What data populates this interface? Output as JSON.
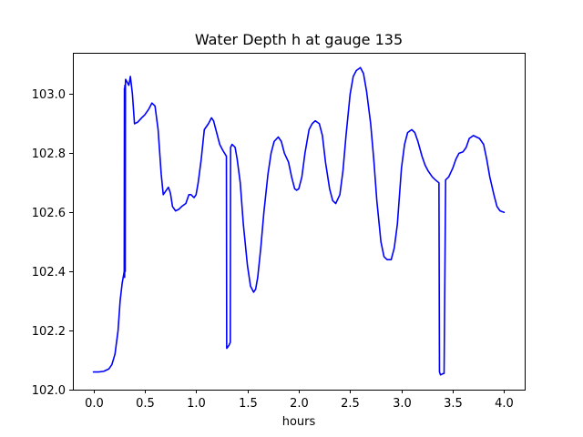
{
  "chart_data": {
    "type": "line",
    "title": "Water Depth h at gauge 135",
    "xlabel": "hours",
    "ylabel": "",
    "xlim": [
      -0.2,
      4.2
    ],
    "ylim": [
      102.0,
      103.14
    ],
    "xticks": [
      0.0,
      0.5,
      1.0,
      1.5,
      2.0,
      2.5,
      3.0,
      3.5,
      4.0
    ],
    "xtick_labels": [
      "0.0",
      "0.5",
      "1.0",
      "1.5",
      "2.0",
      "2.5",
      "3.0",
      "3.5",
      "4.0"
    ],
    "yticks": [
      102.0,
      102.2,
      102.4,
      102.6,
      102.8,
      103.0
    ],
    "ytick_labels": [
      "102.0",
      "102.2",
      "102.4",
      "102.6",
      "102.8",
      "103.0"
    ],
    "grid": false,
    "series": [
      {
        "color": "#0000ff",
        "x": [
          0.0,
          0.05,
          0.1,
          0.15,
          0.18,
          0.21,
          0.24,
          0.26,
          0.28,
          0.3,
          0.302,
          0.304,
          0.306,
          0.31,
          0.312,
          0.314,
          0.33,
          0.345,
          0.36,
          0.38,
          0.4,
          0.43,
          0.47,
          0.5,
          0.54,
          0.57,
          0.6,
          0.63,
          0.66,
          0.68,
          0.7,
          0.73,
          0.75,
          0.77,
          0.8,
          0.83,
          0.86,
          0.9,
          0.93,
          0.95,
          0.98,
          1.0,
          1.02,
          1.05,
          1.08,
          1.12,
          1.15,
          1.17,
          1.2,
          1.23,
          1.26,
          1.295,
          1.298,
          1.3,
          1.32,
          1.333,
          1.336,
          1.35,
          1.38,
          1.4,
          1.43,
          1.46,
          1.5,
          1.53,
          1.56,
          1.58,
          1.6,
          1.63,
          1.66,
          1.7,
          1.73,
          1.76,
          1.8,
          1.83,
          1.86,
          1.9,
          1.93,
          1.96,
          1.98,
          2.0,
          2.03,
          2.06,
          2.1,
          2.13,
          2.16,
          2.2,
          2.23,
          2.26,
          2.3,
          2.33,
          2.36,
          2.4,
          2.43,
          2.46,
          2.5,
          2.53,
          2.56,
          2.6,
          2.63,
          2.66,
          2.7,
          2.73,
          2.76,
          2.8,
          2.83,
          2.86,
          2.9,
          2.93,
          2.96,
          3.0,
          3.03,
          3.06,
          3.1,
          3.13,
          3.16,
          3.2,
          3.23,
          3.26,
          3.3,
          3.33,
          3.365,
          3.37,
          3.38,
          3.41,
          3.415,
          3.43,
          3.46,
          3.5,
          3.53,
          3.56,
          3.6,
          3.63,
          3.66,
          3.7,
          3.73,
          3.76,
          3.8,
          3.83,
          3.86,
          3.9,
          3.93,
          3.96,
          4.0
        ],
        "y": [
          102.06,
          102.06,
          102.062,
          102.07,
          102.085,
          102.12,
          102.2,
          102.3,
          102.36,
          102.4,
          103.02,
          102.38,
          103.03,
          102.4,
          103.04,
          103.05,
          103.04,
          103.03,
          103.06,
          103.0,
          102.9,
          102.905,
          102.92,
          102.93,
          102.95,
          102.97,
          102.96,
          102.88,
          102.73,
          102.66,
          102.67,
          102.685,
          102.665,
          102.62,
          102.605,
          102.61,
          102.62,
          102.63,
          102.66,
          102.66,
          102.65,
          102.66,
          102.7,
          102.78,
          102.88,
          102.9,
          102.92,
          102.91,
          102.87,
          102.83,
          102.81,
          102.79,
          102.14,
          102.14,
          102.15,
          102.16,
          102.82,
          102.83,
          102.82,
          102.78,
          102.7,
          102.56,
          102.42,
          102.35,
          102.33,
          102.34,
          102.38,
          102.48,
          102.6,
          102.73,
          102.8,
          102.84,
          102.855,
          102.84,
          102.8,
          102.77,
          102.72,
          102.68,
          102.675,
          102.68,
          102.72,
          102.8,
          102.88,
          102.9,
          102.91,
          102.9,
          102.86,
          102.77,
          102.68,
          102.64,
          102.63,
          102.66,
          102.74,
          102.86,
          103.0,
          103.06,
          103.08,
          103.09,
          103.07,
          103.01,
          102.9,
          102.78,
          102.64,
          102.5,
          102.45,
          102.44,
          102.44,
          102.48,
          102.56,
          102.75,
          102.83,
          102.87,
          102.88,
          102.87,
          102.84,
          102.79,
          102.76,
          102.74,
          102.72,
          102.71,
          102.7,
          102.06,
          102.05,
          102.055,
          102.055,
          102.71,
          102.72,
          102.75,
          102.78,
          102.8,
          102.805,
          102.82,
          102.85,
          102.86,
          102.855,
          102.85,
          102.83,
          102.78,
          102.72,
          102.66,
          102.62,
          102.605,
          102.6
        ]
      }
    ]
  }
}
